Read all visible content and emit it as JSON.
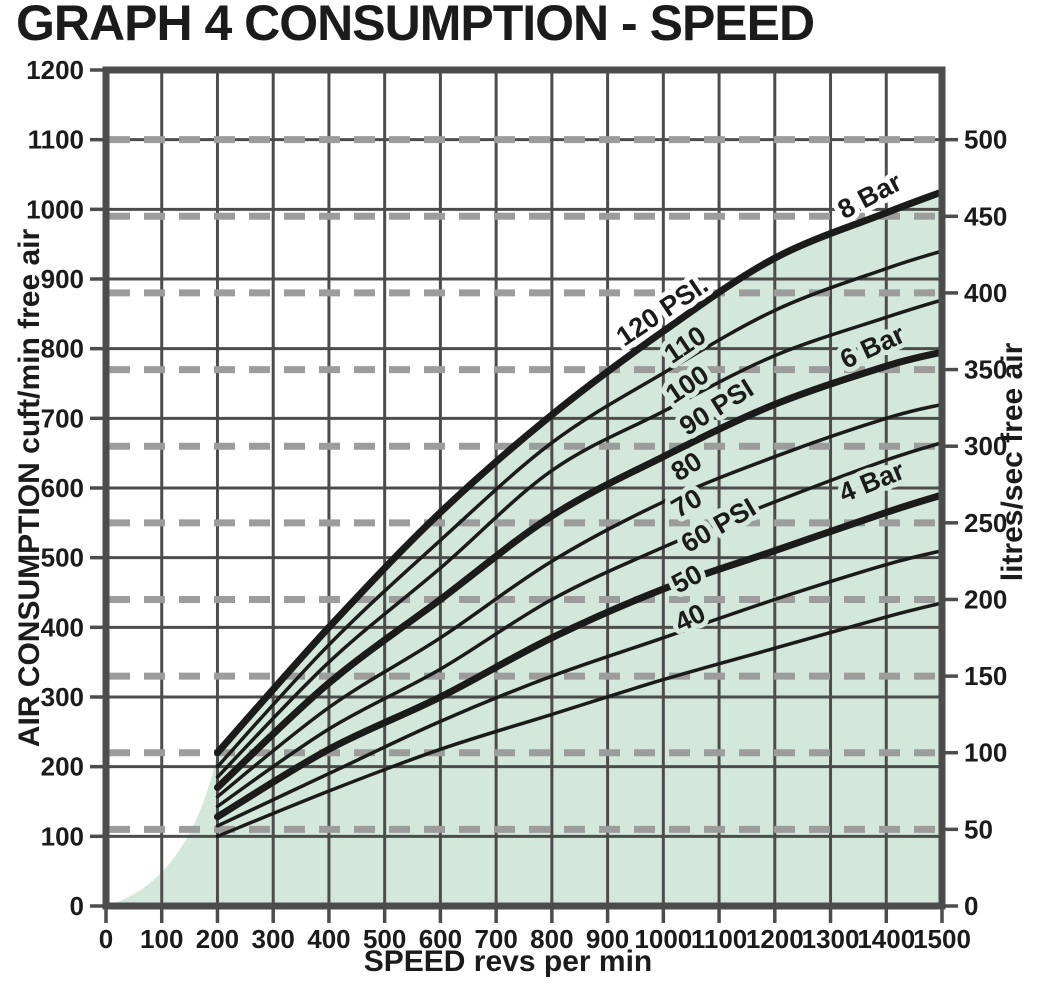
{
  "chart_data": {
    "type": "line",
    "title": "GRAPH 4 CONSUMPTION - SPEED",
    "x_axis": {
      "label": "SPEED revs per min",
      "min": 0,
      "max": 1500,
      "tick_step": 100,
      "ticks": [
        0,
        100,
        200,
        300,
        400,
        500,
        600,
        700,
        800,
        900,
        1000,
        1100,
        1200,
        1300,
        1400,
        1500
      ]
    },
    "y_left": {
      "label": "AIR CONSUMPTION cuft/min free air",
      "min": 0,
      "max": 1200,
      "tick_step": 100,
      "ticks": [
        0,
        100,
        200,
        300,
        400,
        500,
        600,
        700,
        800,
        900,
        1000,
        1100,
        1200
      ]
    },
    "y_right": {
      "label": "litres/sec free air",
      "min": 0,
      "max": 500,
      "tick_step": 50,
      "ticks": [
        0,
        50,
        100,
        150,
        200,
        250,
        300,
        350,
        400,
        450,
        500
      ],
      "cfm_per_litre_per_sec": 2.2,
      "dashed_guides_litres_sec": [
        50,
        100,
        150,
        200,
        250,
        300,
        350,
        400,
        450,
        500
      ]
    },
    "grid": true,
    "legend_position": "labels-on-curves",
    "x_samples_rpm": [
      200,
      400,
      600,
      800,
      1000,
      1200,
      1400,
      1500
    ],
    "series": [
      {
        "label": "40",
        "pressure_psi": 40,
        "bold": false,
        "values_cfm": [
          100,
          165,
          225,
          275,
          325,
          370,
          415,
          435
        ]
      },
      {
        "label": "50",
        "pressure_psi": 50,
        "bold": false,
        "values_cfm": [
          115,
          190,
          265,
          330,
          385,
          440,
          490,
          510
        ]
      },
      {
        "label": "60 PSI",
        "pressure_psi": 60,
        "bar_label": "4 Bar",
        "bold": true,
        "values_cfm": [
          128,
          225,
          300,
          385,
          455,
          510,
          565,
          590
        ]
      },
      {
        "label": "70",
        "pressure_psi": 70,
        "bold": false,
        "values_cfm": [
          143,
          254,
          340,
          440,
          515,
          580,
          640,
          665
        ]
      },
      {
        "label": "80",
        "pressure_psi": 80,
        "bold": false,
        "values_cfm": [
          157,
          285,
          385,
          495,
          580,
          645,
          700,
          720
        ]
      },
      {
        "label": "90 PSI",
        "pressure_psi": 90,
        "bar_label": "6 Bar",
        "bold": true,
        "values_cfm": [
          170,
          320,
          440,
          560,
          645,
          720,
          775,
          795
        ]
      },
      {
        "label": "100",
        "pressure_psi": 100,
        "bold": false,
        "values_cfm": [
          185,
          350,
          485,
          625,
          710,
          790,
          845,
          870
        ]
      },
      {
        "label": "110",
        "pressure_psi": 110,
        "bold": false,
        "values_cfm": [
          200,
          375,
          525,
          665,
          765,
          855,
          915,
          940
        ]
      },
      {
        "label": "120 PSI.",
        "pressure_psi": 120,
        "bar_label": "8 Bar",
        "bold": true,
        "values_cfm": [
          220,
          400,
          565,
          705,
          825,
          930,
          995,
          1025
        ]
      }
    ],
    "curve_labels": [
      {
        "text": "8 Bar",
        "rpm": 1378,
        "cfm": 1008,
        "rot": -28,
        "halo": "#ffffff"
      },
      {
        "text": "120 PSI.",
        "rpm": 1007,
        "cfm": 844,
        "rot": -34,
        "halo": "#ffffff"
      },
      {
        "text": "110",
        "rpm": 1048,
        "cfm": 795,
        "rot": -34,
        "halo": "#d3e8db"
      },
      {
        "text": "100",
        "rpm": 1052,
        "cfm": 738,
        "rot": -34,
        "halo": "#d3e8db"
      },
      {
        "text": "6 Bar",
        "rpm": 1382,
        "cfm": 791,
        "rot": -25,
        "halo": "#d3e8db"
      },
      {
        "text": "90 PSI",
        "rpm": 1104,
        "cfm": 705,
        "rot": -32,
        "halo": "#d3e8db"
      },
      {
        "text": "80",
        "rpm": 1050,
        "cfm": 620,
        "rot": -32,
        "halo": "#d3e8db"
      },
      {
        "text": "70",
        "rpm": 1050,
        "cfm": 567,
        "rot": -30,
        "halo": "#d3e8db"
      },
      {
        "text": "60 PSI",
        "rpm": 1107,
        "cfm": 535,
        "rot": -30,
        "halo": "#d3e8db"
      },
      {
        "text": "4 Bar",
        "rpm": 1380,
        "cfm": 597,
        "rot": -22,
        "halo": "#d3e8db"
      },
      {
        "text": "50",
        "rpm": 1050,
        "cfm": 458,
        "rot": -28,
        "halo": "#d3e8db"
      },
      {
        "text": "40",
        "rpm": 1055,
        "cfm": 402,
        "rot": -26,
        "halo": "#d3e8db"
      }
    ],
    "shaded_region": {
      "description": "area under top (120 PSI / 8 Bar) curve, tapering to origin at 0 rpm",
      "fill_color": "#d3e8db"
    },
    "colors": {
      "grid": "#4c4c4c",
      "frame": "#4c4c4c",
      "dashed_guide": "#9c9c9c",
      "curve": "#1b1b1b",
      "text": "#1b1b1b",
      "fill_green": "#d3e8db",
      "background": "#ffffff"
    }
  }
}
